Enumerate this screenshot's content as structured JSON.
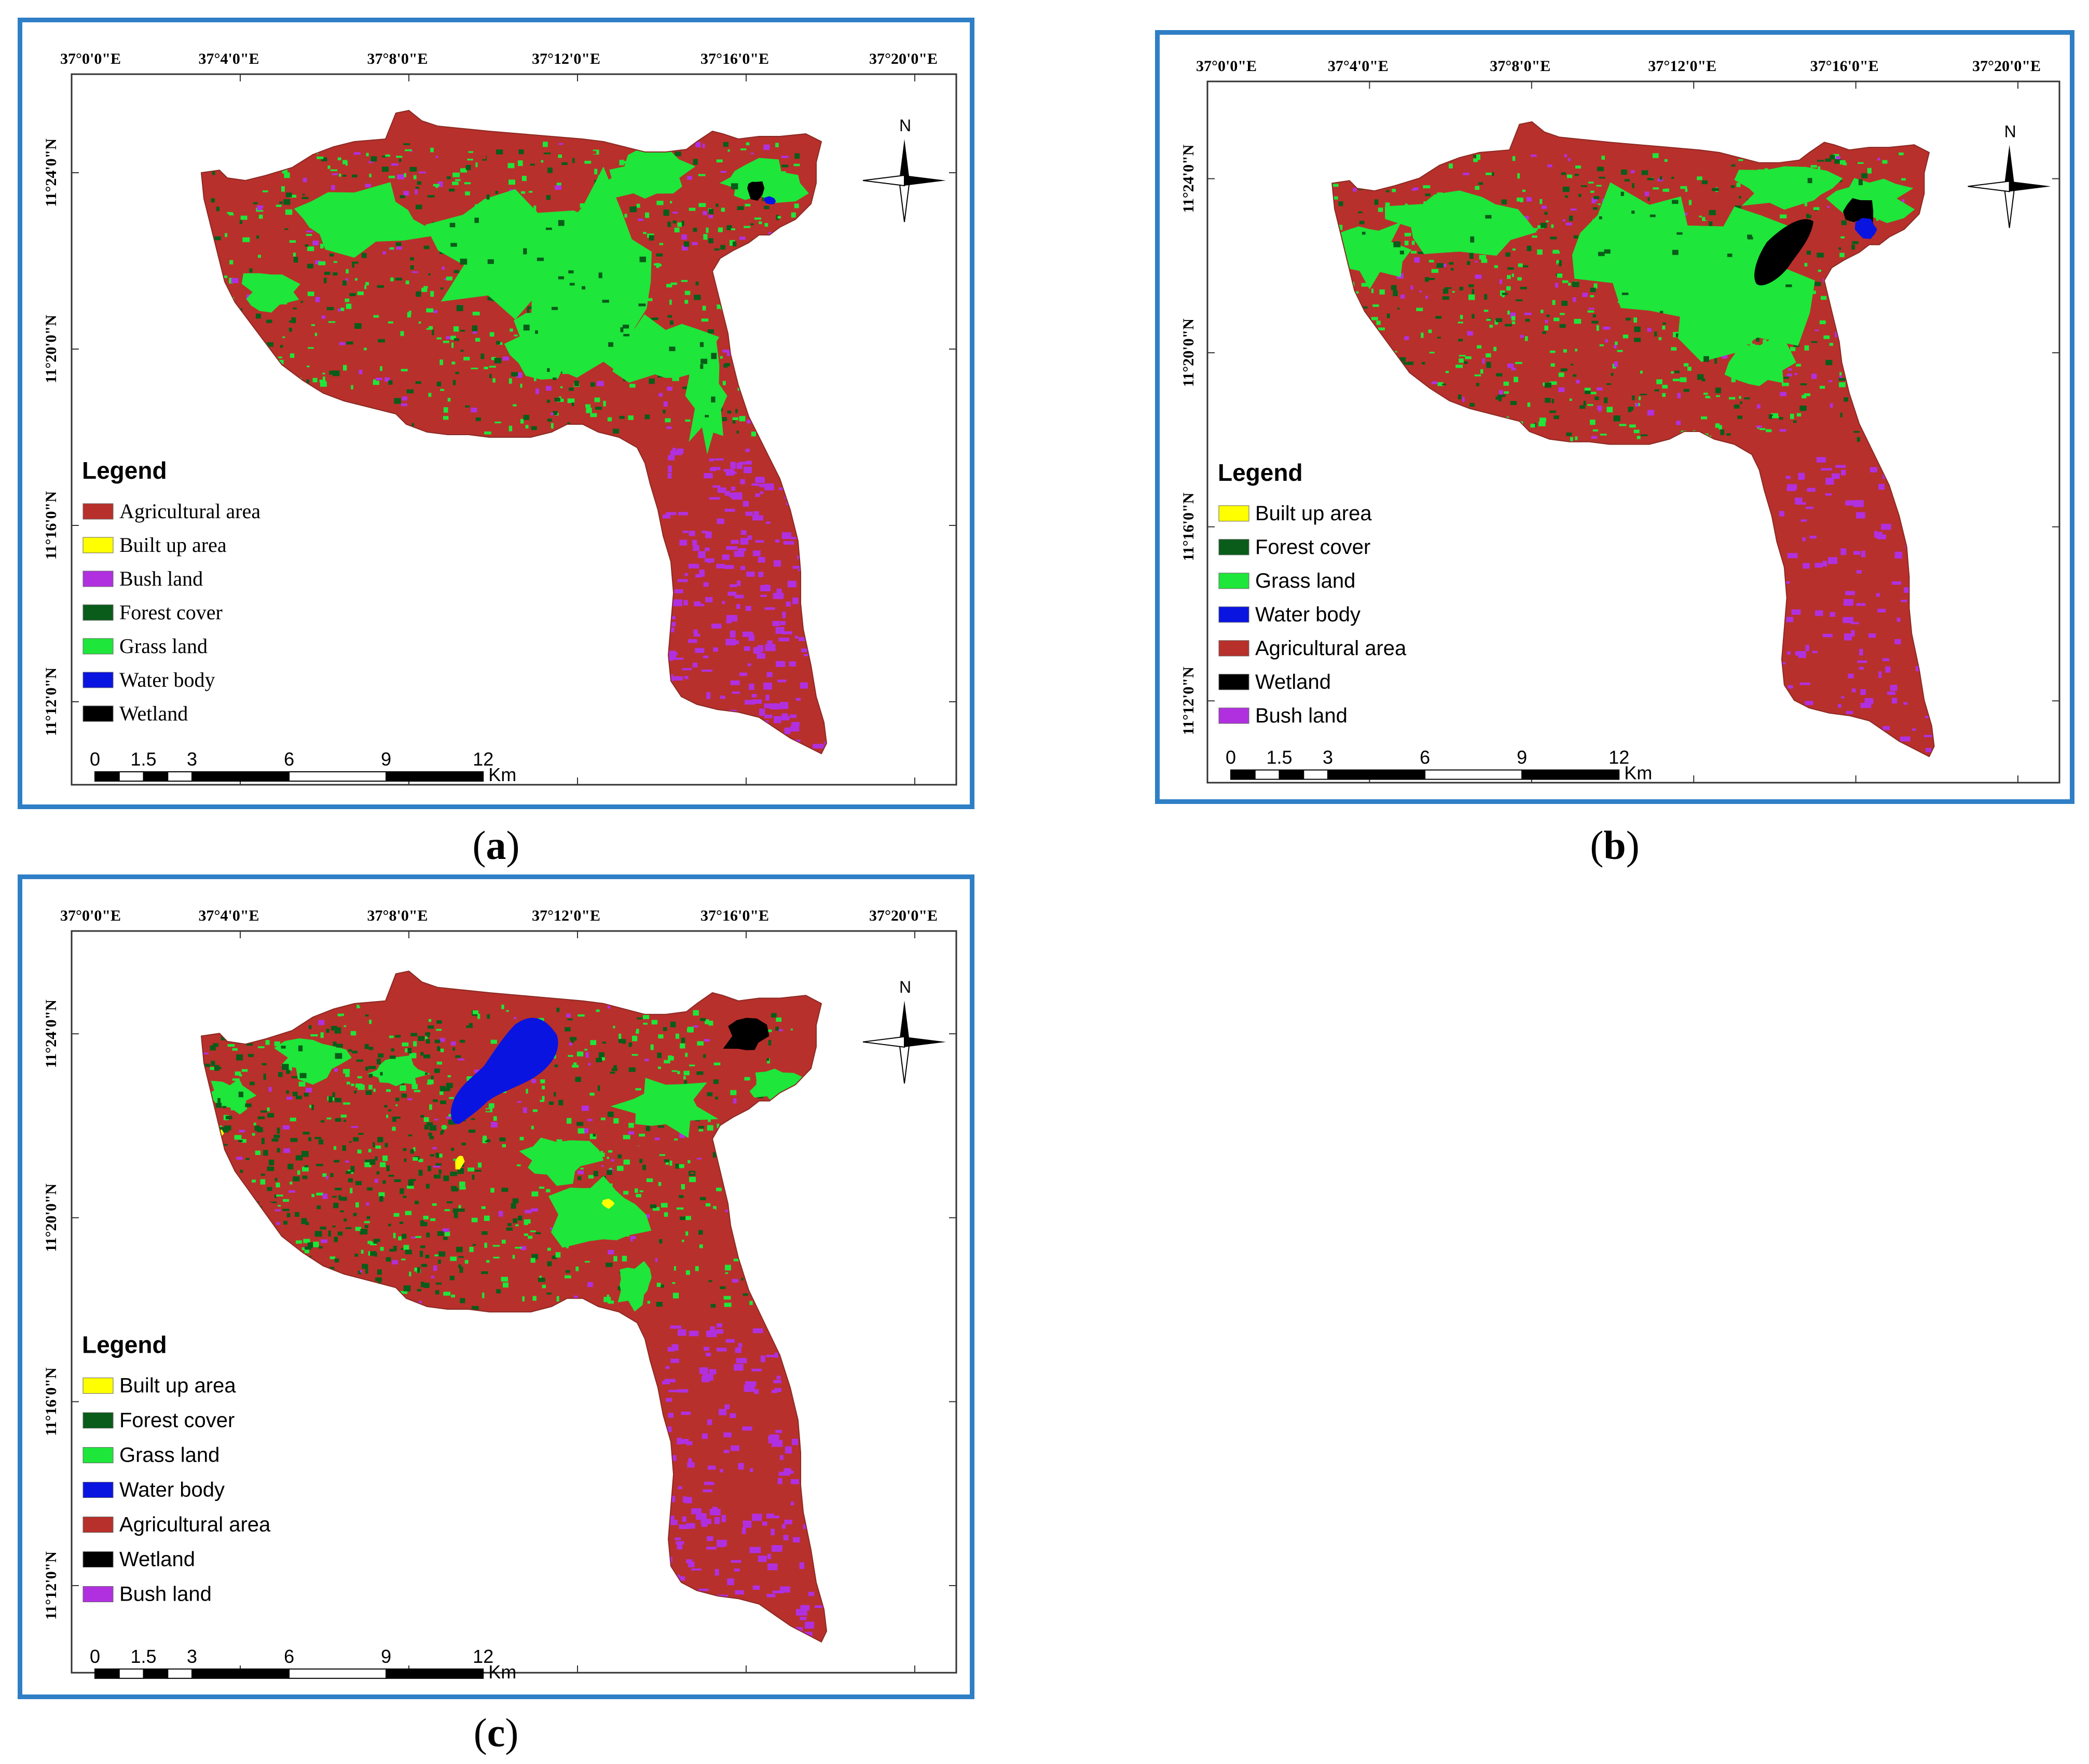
{
  "figure": {
    "panels": [
      {
        "id": "a",
        "caption": "a",
        "lon_labels": [
          "37°0'0\"E",
          "37°4'0\"E",
          "37°8'0\"E",
          "37°12'0\"E",
          "37°16'0\"E",
          "37°20'0\"E"
        ],
        "lat_labels": [
          "11°24'0\"N",
          "11°20'0\"N",
          "11°16'0\"N",
          "11°12'0\"N"
        ],
        "legend_title": "Legend",
        "legend_font": "serif",
        "legend": [
          {
            "label": "Agricultural area",
            "color": "#b8302b"
          },
          {
            "label": "Built up area",
            "color": "#ffff00"
          },
          {
            "label": "Bush land",
            "color": "#b030e0"
          },
          {
            "label": "Forest cover",
            "color": "#0a5c1a"
          },
          {
            "label": "Grass land",
            "color": "#1ee63a"
          },
          {
            "label": "Water body",
            "color": "#0a14e0"
          },
          {
            "label": "Wetland",
            "color": "#000000"
          }
        ],
        "scale_labels": [
          "0",
          "1.5",
          "3",
          "6",
          "9",
          "12"
        ],
        "scale_unit": "Km",
        "north": "N"
      },
      {
        "id": "b",
        "caption": "b",
        "lon_labels": [
          "37°0'0\"E",
          "37°4'0\"E",
          "37°8'0\"E",
          "37°12'0\"E",
          "37°16'0\"E",
          "37°20'0\"E"
        ],
        "lat_labels": [
          "11°24'0\"N",
          "11°20'0\"N",
          "11°16'0\"N",
          "11°12'0\"N"
        ],
        "legend_title": "Legend",
        "legend_font": "sans",
        "legend": [
          {
            "label": "Built up area",
            "color": "#ffff00"
          },
          {
            "label": "Forest cover",
            "color": "#0a5c1a"
          },
          {
            "label": "Grass land",
            "color": "#1ee63a"
          },
          {
            "label": "Water body",
            "color": "#0a14e0"
          },
          {
            "label": "Agricultural area",
            "color": "#b8302b"
          },
          {
            "label": "Wetland",
            "color": "#000000"
          },
          {
            "label": "Bush land",
            "color": "#b030e0"
          }
        ],
        "scale_labels": [
          "0",
          "1.5",
          "3",
          "6",
          "9",
          "12"
        ],
        "scale_unit": "Km",
        "north": "N"
      },
      {
        "id": "c",
        "caption": "c",
        "lon_labels": [
          "37°0'0\"E",
          "37°4'0\"E",
          "37°8'0\"E",
          "37°12'0\"E",
          "37°16'0\"E",
          "37°20'0\"E"
        ],
        "lat_labels": [
          "11°24'0\"N",
          "11°20'0\"N",
          "11°16'0\"N",
          "11°12'0\"N"
        ],
        "legend_title": "Legend",
        "legend_font": "sans",
        "legend": [
          {
            "label": "Built up area",
            "color": "#ffff00"
          },
          {
            "label": "Forest cover",
            "color": "#0a5c1a"
          },
          {
            "label": "Grass land",
            "color": "#1ee63a"
          },
          {
            "label": "Water body",
            "color": "#0a14e0"
          },
          {
            "label": "Agricultural area",
            "color": "#b8302b"
          },
          {
            "label": "Wetland",
            "color": "#000000"
          },
          {
            "label": "Bush land",
            "color": "#b030e0"
          }
        ],
        "scale_labels": [
          "0",
          "1.5",
          "3",
          "6",
          "9",
          "12"
        ],
        "scale_unit": "Km",
        "north": "N"
      }
    ]
  }
}
